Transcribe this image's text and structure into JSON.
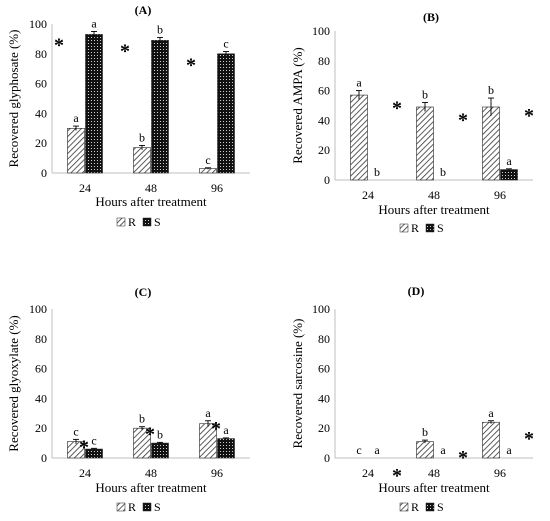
{
  "chart_data": [
    {
      "type": "bar",
      "title": "(A)",
      "xlabel": "Hours after treatment",
      "ylabel": "Recovered glyphosate (%)",
      "categories": [
        "24",
        "48",
        "96"
      ],
      "ylim": [
        0,
        100
      ],
      "yticks": [
        "0",
        "20",
        "40",
        "60",
        "80",
        "100"
      ],
      "series": [
        {
          "name": "R",
          "values": [
            30,
            17,
            3
          ],
          "errors": [
            1.5,
            1.5,
            0.5
          ],
          "letters": [
            "a",
            "b",
            "c"
          ]
        },
        {
          "name": "S",
          "values": [
            93,
            89,
            80
          ],
          "errors": [
            2,
            2,
            1.5
          ],
          "letters": [
            "a",
            "b",
            "c"
          ]
        }
      ],
      "star": "*",
      "legend": "bottom"
    },
    {
      "type": "bar",
      "title": "(B)",
      "xlabel": "Hours after treatment",
      "ylabel": "Recovered AMPA (%)",
      "categories": [
        "24",
        "48",
        "96"
      ],
      "ylim": [
        0,
        100
      ],
      "yticks": [
        "0",
        "20",
        "40",
        "60",
        "80",
        "100"
      ],
      "series": [
        {
          "name": "R",
          "values": [
            57,
            49,
            49
          ],
          "errors": [
            3,
            3,
            6
          ],
          "letters": [
            "a",
            "b",
            "b"
          ]
        },
        {
          "name": "S",
          "values": [
            0,
            0,
            7
          ],
          "errors": [
            0,
            0,
            0.5
          ],
          "letters": [
            "b",
            "b",
            "a"
          ]
        }
      ],
      "star": "*",
      "legend": "bottom"
    },
    {
      "type": "bar",
      "title": "(C)",
      "xlabel": "Hours after treatment",
      "ylabel": "Recovered glyoxylate (%)",
      "categories": [
        "24",
        "48",
        "96"
      ],
      "ylim": [
        0,
        100
      ],
      "yticks": [
        "0",
        "20",
        "40",
        "60",
        "80",
        "100"
      ],
      "series": [
        {
          "name": "R",
          "values": [
            11,
            20,
            23
          ],
          "errors": [
            1.5,
            1,
            2
          ],
          "letters": [
            "c",
            "b",
            "a"
          ]
        },
        {
          "name": "S",
          "values": [
            6,
            10,
            13
          ],
          "errors": [
            0.5,
            0.5,
            0.5
          ],
          "letters": [
            "c",
            "b",
            "a"
          ]
        }
      ],
      "star": "*",
      "legend": "bottom"
    },
    {
      "type": "bar",
      "title": "(D)",
      "xlabel": "Hours after treatment",
      "ylabel": "Recovered sarcosine (%)",
      "categories": [
        "24",
        "48",
        "96"
      ],
      "ylim": [
        0,
        100
      ],
      "yticks": [
        "0",
        "20",
        "40",
        "60",
        "80",
        "100"
      ],
      "series": [
        {
          "name": "R",
          "values": [
            0,
            11,
            24
          ],
          "errors": [
            0,
            1,
            1
          ],
          "letters": [
            "c",
            "b",
            "a"
          ]
        },
        {
          "name": "S",
          "values": [
            0,
            0,
            0
          ],
          "errors": [
            0,
            0,
            0
          ],
          "letters": [
            "a",
            "a",
            "a"
          ]
        }
      ],
      "star": "*",
      "legend": "bottom"
    }
  ],
  "colors": {
    "axis": "#bfbfbf",
    "bars": "#000000",
    "r_fill": "#ffffff",
    "s_fill": "#1a1a1a"
  }
}
